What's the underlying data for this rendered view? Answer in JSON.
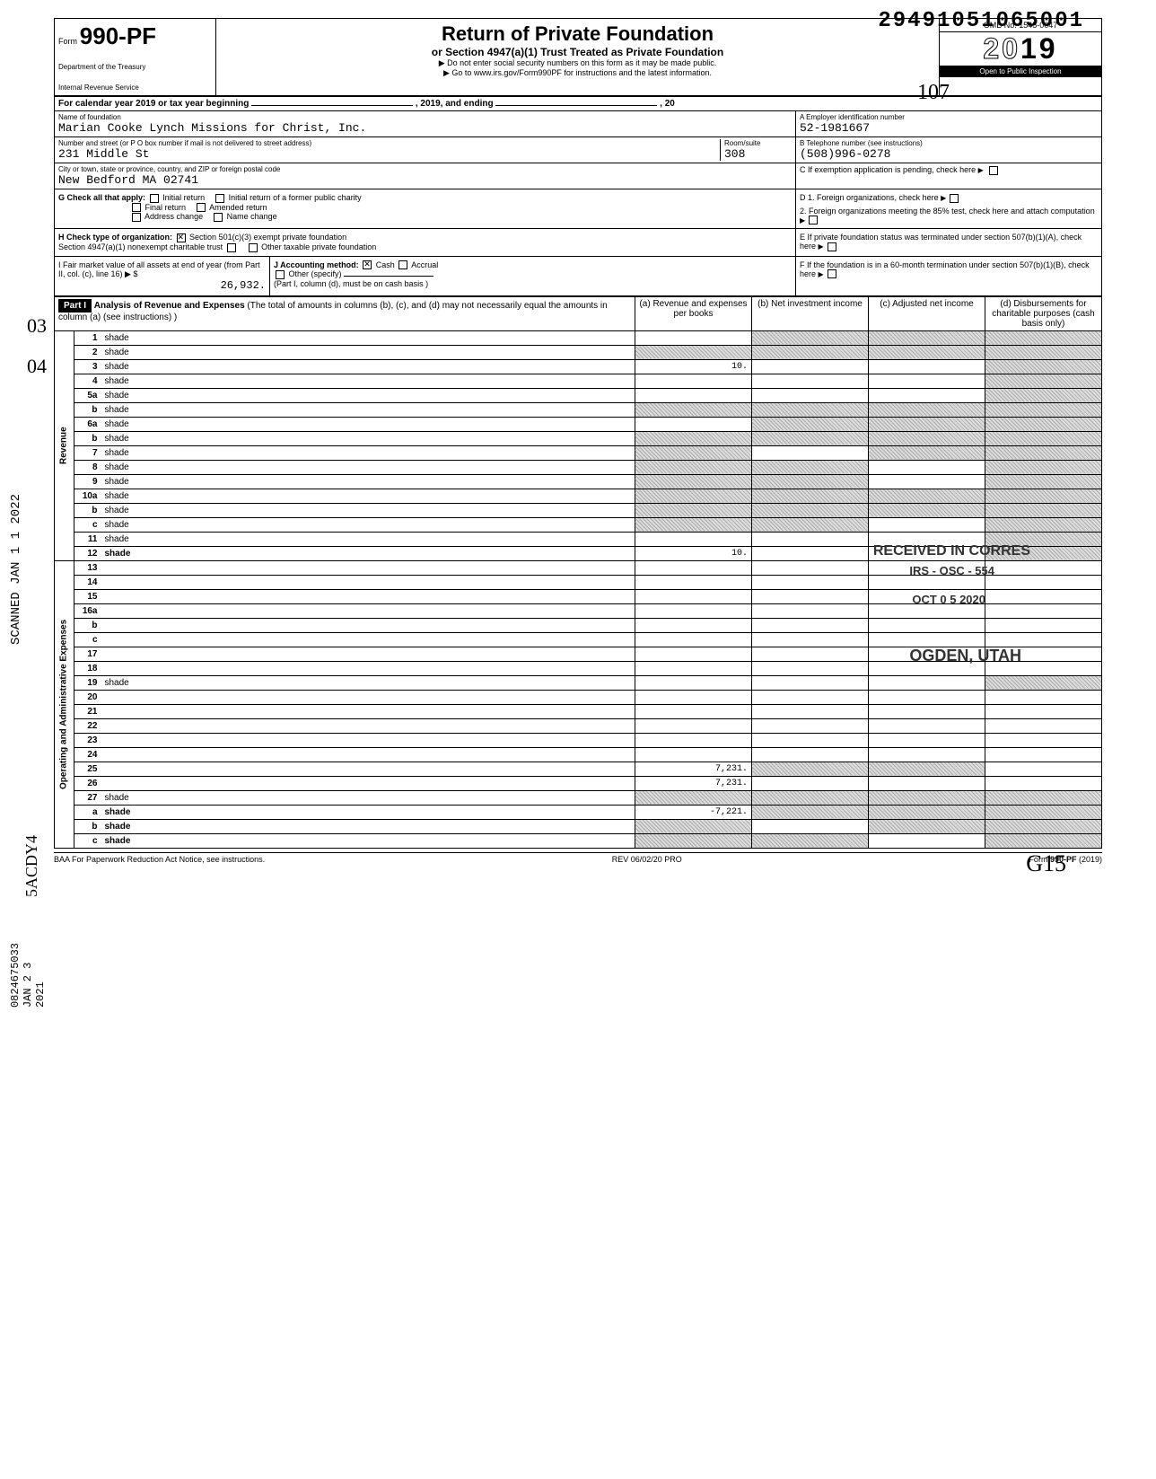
{
  "top_code": "29491051065001",
  "form": {
    "label": "Form",
    "number": "990-PF",
    "dept1": "Department of the Treasury",
    "dept2": "Internal Revenue Service"
  },
  "header_center": {
    "title": "Return of Private Foundation",
    "subtitle": "or Section 4947(a)(1) Trust Treated as Private Foundation",
    "note1": "▶ Do not enter social security numbers on this form as it may be made public.",
    "note2": "▶ Go to www.irs.gov/Form990PF for instructions and the latest information."
  },
  "header_right": {
    "omb": "OMB No. 1545-0047",
    "year_prefix": "20",
    "year_suffix": "19",
    "inspection": "Open to Public Inspection"
  },
  "calendar_line": {
    "prefix": "For calendar year 2019 or tax year beginning",
    "mid": ", 2019, and ending",
    "suffix": ", 20"
  },
  "identity": {
    "name_label": "Name of foundation",
    "name": "Marian Cooke Lynch Missions for Christ, Inc.",
    "ein_label": "A  Employer identification number",
    "ein": "52-1981667",
    "street_label": "Number and street (or P O  box number if mail is not delivered to street address)",
    "room_label": "Room/suite",
    "street": "231 Middle St",
    "room": "308",
    "phone_label": "B  Telephone number (see instructions)",
    "phone": "(508)996-0278",
    "city_label": "City or town, state or province, country, and ZIP or foreign postal code",
    "city": "New Bedford MA 02741",
    "c_label": "C  If exemption application is pending, check here"
  },
  "section_g": {
    "label": "G  Check all that apply:",
    "opts": [
      "Initial return",
      "Initial return of a former public charity",
      "Final return",
      "Amended return",
      "Address change",
      "Name change"
    ]
  },
  "section_d": {
    "d1": "D  1. Foreign organizations, check here",
    "d2": "2. Foreign organizations meeting the 85% test, check here and attach computation"
  },
  "section_h": {
    "label": "H  Check type of organization:",
    "opt1": "Section 501(c)(3) exempt private foundation",
    "opt2": "Section 4947(a)(1) nonexempt charitable trust",
    "opt3": "Other taxable private foundation"
  },
  "section_e": "E  If private foundation status was terminated under section 507(b)(1)(A), check here",
  "section_i": {
    "label": "I   Fair market value of all assets at end of year (from Part II, col. (c), line 16) ▶ $",
    "value": "26,932."
  },
  "section_j": {
    "label": "J  Accounting method:",
    "cash": "Cash",
    "accrual": "Accrual",
    "other": "Other (specify)",
    "note": "(Part I, column (d), must be on cash basis )"
  },
  "section_f": "F  If the foundation is in a 60-month termination under section 507(b)(1)(B), check here",
  "part1": {
    "label": "Part I",
    "title": "Analysis of Revenue and Expenses",
    "title_note": "(The total of amounts in columns (b), (c), and (d) may not necessarily equal the amounts in column (a) (see instructions) )",
    "col_a": "(a) Revenue and expenses per books",
    "col_b": "(b) Net investment income",
    "col_c": "(c) Adjusted net income",
    "col_d": "(d) Disbursements for charitable purposes (cash basis only)"
  },
  "revenue_label": "Revenue",
  "expenses_label": "Operating and Administrative Expenses",
  "lines": [
    {
      "n": "1",
      "d": "shade",
      "a": "",
      "b": "shade",
      "c": "shade"
    },
    {
      "n": "2",
      "d": "shade",
      "a": "shade",
      "b": "shade",
      "c": "shade"
    },
    {
      "n": "3",
      "d": "shade",
      "a": "10.",
      "b": "",
      "c": ""
    },
    {
      "n": "4",
      "d": "shade",
      "a": "",
      "b": "",
      "c": ""
    },
    {
      "n": "5a",
      "d": "shade",
      "a": "",
      "b": "",
      "c": ""
    },
    {
      "n": "b",
      "d": "shade",
      "a": "shade",
      "b": "shade",
      "c": "shade"
    },
    {
      "n": "6a",
      "d": "shade",
      "a": "",
      "b": "shade",
      "c": "shade"
    },
    {
      "n": "b",
      "d": "shade",
      "a": "shade",
      "b": "shade",
      "c": "shade"
    },
    {
      "n": "7",
      "d": "shade",
      "a": "shade",
      "b": "",
      "c": "shade"
    },
    {
      "n": "8",
      "d": "shade",
      "a": "shade",
      "b": "shade",
      "c": ""
    },
    {
      "n": "9",
      "d": "shade",
      "a": "shade",
      "b": "shade",
      "c": ""
    },
    {
      "n": "10a",
      "d": "shade",
      "a": "shade",
      "b": "shade",
      "c": "shade"
    },
    {
      "n": "b",
      "d": "shade",
      "a": "shade",
      "b": "shade",
      "c": "shade"
    },
    {
      "n": "c",
      "d": "shade",
      "a": "shade",
      "b": "shade",
      "c": ""
    },
    {
      "n": "11",
      "d": "shade",
      "a": "",
      "b": "",
      "c": ""
    },
    {
      "n": "12",
      "d": "shade",
      "a": "10.",
      "b": "",
      "c": "",
      "bold": true
    },
    {
      "n": "13",
      "d": "",
      "a": "",
      "b": "",
      "c": ""
    },
    {
      "n": "14",
      "d": "",
      "a": "",
      "b": "",
      "c": ""
    },
    {
      "n": "15",
      "d": "",
      "a": "",
      "b": "",
      "c": ""
    },
    {
      "n": "16a",
      "d": "",
      "a": "",
      "b": "",
      "c": ""
    },
    {
      "n": "b",
      "d": "",
      "a": "",
      "b": "",
      "c": ""
    },
    {
      "n": "c",
      "d": "",
      "a": "",
      "b": "",
      "c": ""
    },
    {
      "n": "17",
      "d": "",
      "a": "",
      "b": "",
      "c": ""
    },
    {
      "n": "18",
      "d": "",
      "a": "",
      "b": "",
      "c": ""
    },
    {
      "n": "19",
      "d": "shade",
      "a": "",
      "b": "",
      "c": ""
    },
    {
      "n": "20",
      "d": "",
      "a": "",
      "b": "",
      "c": ""
    },
    {
      "n": "21",
      "d": "",
      "a": "",
      "b": "",
      "c": ""
    },
    {
      "n": "22",
      "d": "",
      "a": "",
      "b": "",
      "c": ""
    },
    {
      "n": "23",
      "d": "",
      "a": "",
      "b": "",
      "c": ""
    },
    {
      "n": "24",
      "d": "",
      "a": "",
      "b": "",
      "c": "",
      "bold": true
    },
    {
      "n": "25",
      "d": "",
      "a": "7,231.",
      "b": "shade",
      "c": "shade"
    },
    {
      "n": "26",
      "d": "",
      "a": "7,231.",
      "b": "",
      "c": "",
      "bold": true
    },
    {
      "n": "27",
      "d": "shade",
      "a": "shade",
      "b": "shade",
      "c": "shade"
    },
    {
      "n": "a",
      "d": "shade",
      "a": "-7,221.",
      "b": "shade",
      "c": "shade",
      "bold": true
    },
    {
      "n": "b",
      "d": "shade",
      "a": "shade",
      "b": "",
      "c": "shade",
      "bold": true
    },
    {
      "n": "c",
      "d": "shade",
      "a": "shade",
      "b": "shade",
      "c": "",
      "bold": true
    }
  ],
  "footer": {
    "left": "BAA   For Paperwork Reduction Act Notice, see instructions.",
    "center": "REV 06/02/20 PRO",
    "right": "Form 990-PF (2019)"
  },
  "side": {
    "scanned": "SCANNED  JAN 1 1 2022",
    "dln": "0824675033 JAN 2 3 2021"
  },
  "stamps": {
    "received1": "RECEIVED IN CORRES",
    "received2": "IRS - OSC - 554",
    "received3": "OCT 0 5 2020",
    "ogden": "OGDEN, UTAH"
  },
  "handwritten": {
    "hw1": "03",
    "hw2": "04",
    "hw3": "107",
    "hw4": "G15",
    "hw5": "5ACDY4"
  }
}
